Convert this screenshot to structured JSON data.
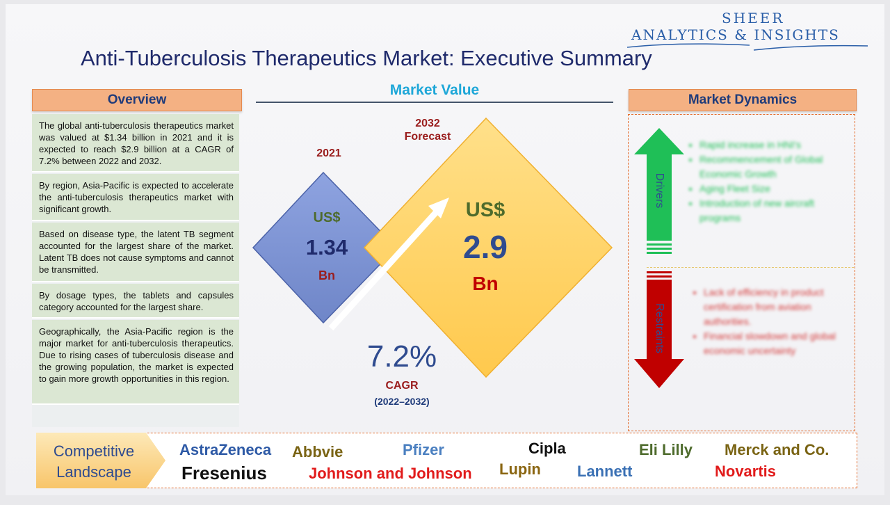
{
  "logo": {
    "line1": "SHEER",
    "line2": "ANALYTICS & INSIGHTS"
  },
  "title": "Anti-Tuberculosis Therapeutics Market: Executive Summary",
  "overview": {
    "header": "Overview",
    "paragraphs": [
      "The global anti-tuberculosis therapeutics market was valued at $1.34 billion in 2021 and it is expected to reach $2.9 billion at a CAGR of 7.2% between 2022 and 2032.",
      "By region, Asia-Pacific is expected to accelerate the anti-tuberculosis therapeutics market with significant growth.",
      "Based on disease type, the latent TB segment accounted for the largest share of the market. Latent TB does not cause symptoms and cannot be transmitted.",
      "By dosage types, the tablets and capsules category accounted for the largest share.",
      "Geographically, the Asia-Pacific region is the major market for anti-tuberculosis therapeutics. Due to rising cases of tuberculosis disease and the growing population, the market is expected to gain more growth opportunities in this region."
    ]
  },
  "market_value": {
    "title": "Market Value",
    "left": {
      "year": "2021",
      "currency": "US$",
      "value": "1.34",
      "unit": "Bn"
    },
    "right": {
      "year": "2032",
      "year_note": "Forecast",
      "currency": "US$",
      "value": "2.9",
      "unit": "Bn"
    },
    "cagr": {
      "value": "7.2%",
      "label": "CAGR",
      "period": "(2022–2032)"
    }
  },
  "dynamics": {
    "header": "Market Dynamics",
    "drivers_label": "Drivers",
    "restraints_label": "Restraints",
    "drivers": [
      "Rapid increase in HNI's",
      "Recommencement of Global Economic Growth",
      "Aging Fleet Size",
      "Introduction of new aircraft programs"
    ],
    "restraints": [
      "Lack of efficiency in product certification from aviation authorities.",
      "Financial slowdown and global economic uncertainty"
    ]
  },
  "competitive": {
    "label_line1": "Competitive",
    "label_line2": "Landscape",
    "companies": [
      "AstraZeneca",
      "Fresenius",
      "Abbvie",
      "Johnson and Johnson",
      "Pfizer",
      "Lupin",
      "Cipla",
      "Lannett",
      "Eli Lilly",
      "Merck and Co.",
      "Novartis"
    ]
  },
  "colors": {
    "title": "#1f2a6b",
    "header_fill": "#f4b183",
    "overview_fill": "#dbe7d3",
    "diamond_left": "#7f96d6",
    "diamond_right": "#ffd873",
    "drivers_arrow": "#1fbf57",
    "restraints_arrow": "#c00000"
  }
}
